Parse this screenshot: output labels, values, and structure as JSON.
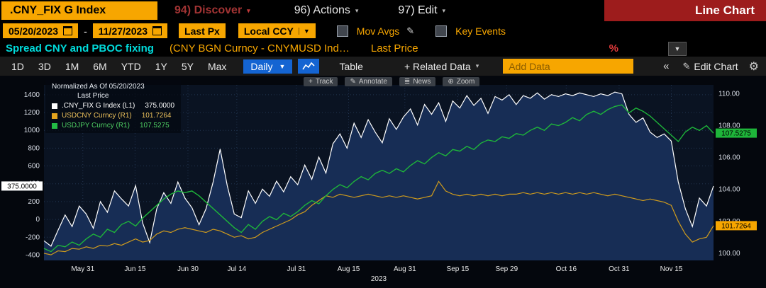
{
  "title_bar": {
    "ticker": ".CNY_FIX G Index",
    "menu_discover": "94) Discover",
    "menu_actions": "96) Actions",
    "menu_edit": "97) Edit",
    "view_label": "Line Chart"
  },
  "controls": {
    "date_from": "05/20/2023",
    "dash": "-",
    "date_to": "11/27/2023",
    "price_type": "Last Px",
    "currency": "Local CCY",
    "mov_avgs_label": "Mov Avgs",
    "key_events_label": "Key Events"
  },
  "subtitle": {
    "strategy": "Spread CNY and PBOC fixing",
    "formula": "(CNY BGN Curncy - CNYMUSD Ind…",
    "price_label": "Last Price",
    "percent_symbol": "%"
  },
  "toolbar": {
    "periods": [
      "1D",
      "3D",
      "1M",
      "6M",
      "YTD",
      "1Y",
      "5Y",
      "Max"
    ],
    "frequency": "Daily",
    "table_label": "Table",
    "related_data_label": "+ Related Data",
    "add_data_placeholder": "Add Data",
    "collapse_label": "«",
    "edit_chart_label": "Edit Chart"
  },
  "chart_toolbar": {
    "track": "Track",
    "annotate": "Annotate",
    "news": "News",
    "zoom": "Zoom"
  },
  "legend": {
    "title": "Normalized As Of 05/20/2023",
    "subtitle": "Last Price",
    "rows": [
      {
        "label": ".CNY_FIX G Index (L1)",
        "value": "375.0000"
      },
      {
        "label": "USDCNY Curncy  (R1)",
        "value": "101.7264"
      },
      {
        "label": "USDJPY Curncy  (R1)",
        "value": "107.5275"
      }
    ]
  },
  "chart_data": {
    "type": "line",
    "title": "Spread CNY and PBOC fixing — normalized as of 05/20/2023",
    "x_range": [
      "05/20/2023",
      "11/27/2023"
    ],
    "colors": {
      "plot_bg": "#0a1322",
      "area_fill": "#172d55",
      "grid": "#223450",
      "axis_text": "#d8dde6"
    },
    "axes": {
      "left": {
        "min": -460,
        "max": 1510,
        "ticks": [
          [
            1400,
            "1400"
          ],
          [
            1200,
            "1200"
          ],
          [
            1000,
            "1000"
          ],
          [
            800,
            "800"
          ],
          [
            600,
            "600"
          ],
          [
            400,
            "400"
          ],
          [
            200,
            "200"
          ],
          [
            0,
            "0"
          ],
          [
            -200,
            "-200"
          ],
          [
            -400,
            "-400"
          ]
        ]
      },
      "right": {
        "min": 99.55,
        "max": 110.55,
        "ticks": [
          [
            110,
            "110.00"
          ],
          [
            108,
            "108.00"
          ],
          [
            106,
            "106.00"
          ],
          [
            104,
            "104.00"
          ],
          [
            102,
            "102.00"
          ],
          [
            100,
            "100.00"
          ]
        ]
      },
      "x_year": "2023"
    },
    "x_ticks": [
      [
        0.058,
        "May 31"
      ],
      [
        0.136,
        "Jun 15"
      ],
      [
        0.215,
        "Jun 30"
      ],
      [
        0.288,
        "Jul 14"
      ],
      [
        0.377,
        "Jul 31"
      ],
      [
        0.455,
        "Aug 15"
      ],
      [
        0.539,
        "Aug 31"
      ],
      [
        0.618,
        "Sep 15"
      ],
      [
        0.691,
        "Sep 29"
      ],
      [
        0.78,
        "Oct 16"
      ],
      [
        0.859,
        "Oct 31"
      ],
      [
        0.937,
        "Nov 15"
      ]
    ],
    "series": [
      {
        "id": "cny-fix-spread",
        "name": ".CNY_FIX G Index (L1)",
        "axis": "left",
        "color": "#ffffff",
        "width": 1.2,
        "badge": "375.0000",
        "badge_side": "left",
        "badge_bg": "#ffffff",
        "values": [
          -240,
          -300,
          -120,
          50,
          -80,
          150,
          60,
          -100,
          200,
          80,
          320,
          230,
          150,
          380,
          -40,
          -260,
          120,
          300,
          180,
          420,
          240,
          130,
          -60,
          120,
          420,
          790,
          380,
          60,
          20,
          320,
          180,
          340,
          260,
          430,
          310,
          480,
          390,
          610,
          450,
          700,
          520,
          850,
          960,
          800,
          1080,
          920,
          1120,
          980,
          860,
          1130,
          1010,
          1150,
          1240,
          1060,
          1290,
          1180,
          1310,
          1100,
          1330,
          1250,
          1390,
          1280,
          1360,
          1190,
          1380,
          1340,
          1400,
          1290,
          1390,
          1360,
          1420,
          1350,
          1400,
          1380,
          1410,
          1390,
          1420,
          1400,
          1380,
          1410,
          1390,
          1430,
          1410,
          1180,
          1090,
          1140,
          980,
          920,
          960,
          880,
          420,
          120,
          -80,
          240,
          150,
          375
        ]
      },
      {
        "id": "usdcny",
        "name": "USDCNY Curncy (R1)",
        "axis": "right",
        "color": "#cf9b1d",
        "width": 1.2,
        "badge": "101.7264",
        "badge_side": "right",
        "badge_bg": "#f7a600",
        "values": [
          100.0,
          99.9,
          100.15,
          100.1,
          100.3,
          100.25,
          100.4,
          100.3,
          100.5,
          100.45,
          100.6,
          100.5,
          100.7,
          100.9,
          100.7,
          100.8,
          101.2,
          101.4,
          101.3,
          101.5,
          101.6,
          101.5,
          101.4,
          101.3,
          101.5,
          101.4,
          101.2,
          101.0,
          101.1,
          100.9,
          101.0,
          101.3,
          101.5,
          101.7,
          101.9,
          102.1,
          102.4,
          102.6,
          103.0,
          103.3,
          103.6,
          103.5,
          103.7,
          103.6,
          103.5,
          103.6,
          103.7,
          103.6,
          103.5,
          103.6,
          103.5,
          103.6,
          103.5,
          103.4,
          103.5,
          103.6,
          104.5,
          103.9,
          103.7,
          103.6,
          103.7,
          103.6,
          103.7,
          103.6,
          103.7,
          103.6,
          103.7,
          103.7,
          103.8,
          103.7,
          103.8,
          103.7,
          103.8,
          103.7,
          103.8,
          103.7,
          103.8,
          103.7,
          103.8,
          103.7,
          103.6,
          103.7,
          103.6,
          103.5,
          103.4,
          103.3,
          103.4,
          103.3,
          103.2,
          103.0,
          102.0,
          101.2,
          100.7,
          100.9,
          101.0,
          101.7264
        ]
      },
      {
        "id": "usdjpy",
        "name": "USDJPY Curncy (R1)",
        "axis": "right",
        "color": "#1eb53a",
        "width": 1.4,
        "badge": "107.5275",
        "badge_side": "right",
        "badge_bg": "#1eb53a",
        "values": [
          100.3,
          100.1,
          100.5,
          100.4,
          100.7,
          100.5,
          100.9,
          101.2,
          101.0,
          101.5,
          101.3,
          101.8,
          102.0,
          101.7,
          102.2,
          102.6,
          103.0,
          103.4,
          103.7,
          103.9,
          103.8,
          103.9,
          103.6,
          103.2,
          102.8,
          102.4,
          102.0,
          101.6,
          101.3,
          101.8,
          101.5,
          102.0,
          102.3,
          102.1,
          102.5,
          102.3,
          102.6,
          103.0,
          103.3,
          103.1,
          103.6,
          104.0,
          104.3,
          104.1,
          104.5,
          104.8,
          104.6,
          105.0,
          105.2,
          105.0,
          105.3,
          105.1,
          105.5,
          105.8,
          105.6,
          106.0,
          106.3,
          106.1,
          106.5,
          106.4,
          106.7,
          106.5,
          106.9,
          107.1,
          107.0,
          107.3,
          107.2,
          107.5,
          107.4,
          107.7,
          107.9,
          107.7,
          108.1,
          108.0,
          108.2,
          108.5,
          108.3,
          108.7,
          108.9,
          108.7,
          109.0,
          109.2,
          109.3,
          108.8,
          109.1,
          108.9,
          108.6,
          108.2,
          107.8,
          107.4,
          107.0,
          107.6,
          107.9,
          107.7,
          108.0,
          107.5275
        ]
      }
    ]
  }
}
